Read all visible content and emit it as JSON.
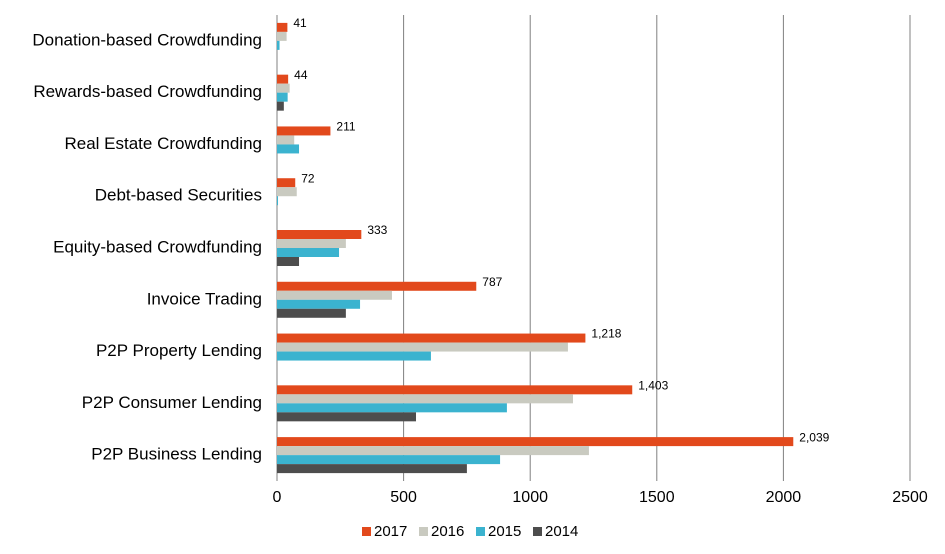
{
  "chart_data": {
    "type": "hbar",
    "categories": [
      "Donation-based Crowdfunding",
      "Rewards-based Crowdfunding",
      "Real Estate Crowdfunding",
      "Debt-based Securities",
      "Equity-based Crowdfunding",
      "Invoice Trading",
      "P2P Property Lending",
      "P2P Consumer Lending",
      "P2P Business Lending"
    ],
    "series": [
      {
        "name": "2017",
        "color": "#e2491c",
        "values": [
          41,
          44,
          211,
          72,
          333,
          787,
          1218,
          1403,
          2039
        ],
        "value_labels": [
          "41",
          "44",
          "211",
          "72",
          "333",
          "787",
          "1,218",
          "1,403",
          "2,039"
        ]
      },
      {
        "name": "2016",
        "color": "#c9cac0",
        "values": [
          38,
          50,
          68,
          78,
          272,
          454,
          1149,
          1169,
          1232
        ]
      },
      {
        "name": "2015",
        "color": "#3bb3cf",
        "values": [
          10,
          42,
          87,
          4,
          245,
          328,
          608,
          908,
          881
        ]
      },
      {
        "name": "2014",
        "color": "#4d4d4d",
        "values": [
          null,
          27,
          null,
          null,
          87,
          272,
          null,
          549,
          750
        ]
      }
    ],
    "xlim": [
      0,
      2500
    ],
    "xticks": [
      0,
      500,
      1000,
      1500,
      2000,
      2500
    ],
    "grid": true
  }
}
